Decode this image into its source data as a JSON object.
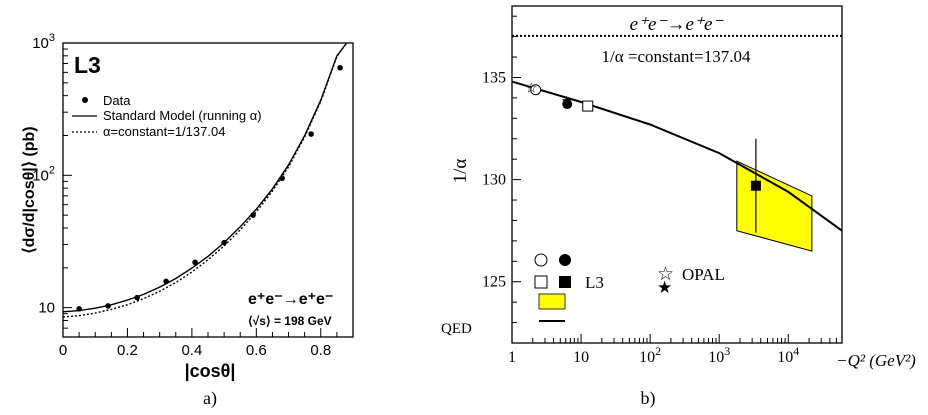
{
  "chart_data": [
    {
      "type": "scatter",
      "panel_label": "a)",
      "experiment_label": "L3",
      "ylabel": "⟨dσ/d|cosθ|⟩ (pb)",
      "xlabel": "|cosθ|",
      "xlim": [
        0,
        0.9
      ],
      "ylim": [
        6,
        1000
      ],
      "yscale": "log",
      "x_ticks": [
        "0",
        "0.2",
        "0.4",
        "0.6",
        "0.8"
      ],
      "y_tick_labels": [
        {
          "base": "10",
          "exp": ""
        },
        {
          "base": "10",
          "exp": "2"
        },
        {
          "base": "10",
          "exp": "3"
        }
      ],
      "legend": {
        "position": "top-left",
        "entries": [
          "Data",
          "Standard Model (running α)",
          "α=constant=1/137.04"
        ]
      },
      "process_label": "e⁺e⁻→e⁺e⁻",
      "energy_label": "⟨√s⟩ = 198 GeV",
      "series": [
        {
          "name": "Data",
          "x": [
            0.05,
            0.14,
            0.23,
            0.32,
            0.41,
            0.5,
            0.59,
            0.68,
            0.77,
            0.86
          ],
          "y": [
            9.8,
            10.3,
            11.9,
            15.8,
            22,
            31,
            50,
            95,
            205,
            650
          ]
        },
        {
          "name": "Standard Model (running α)",
          "x": [
            0,
            0.05,
            0.1,
            0.15,
            0.2,
            0.25,
            0.3,
            0.35,
            0.4,
            0.45,
            0.5,
            0.55,
            0.6,
            0.65,
            0.7,
            0.75,
            0.8,
            0.85,
            0.88
          ],
          "y": [
            9.3,
            9.5,
            9.9,
            10.5,
            11.4,
            12.6,
            14.3,
            16.6,
            19.9,
            24.4,
            31,
            40.8,
            55.5,
            79,
            120,
            200,
            370,
            800,
            1000
          ]
        },
        {
          "name": "α=constant=1/137.04",
          "x": [
            0,
            0.05,
            0.1,
            0.15,
            0.2,
            0.25,
            0.3,
            0.35,
            0.4,
            0.45,
            0.5,
            0.55,
            0.6,
            0.65,
            0.7,
            0.75,
            0.8,
            0.85,
            0.88
          ],
          "y": [
            8.5,
            8.7,
            9.1,
            9.7,
            10.5,
            11.7,
            13.3,
            15.5,
            18.6,
            23,
            29.3,
            38.7,
            53,
            76,
            116,
            195,
            362,
            790,
            1000
          ]
        }
      ]
    },
    {
      "type": "scatter",
      "panel_label": "b)",
      "ylabel": "1/α",
      "xlabel": "−Q² (GeV²)",
      "xscale": "log",
      "xlim": [
        1,
        60000
      ],
      "ylim": [
        122,
        138.5
      ],
      "x_tick_labels": [
        {
          "base": "1",
          "exp": ""
        },
        {
          "base": "10",
          "exp": ""
        },
        {
          "base": "10",
          "exp": "2"
        },
        {
          "base": "10",
          "exp": "3"
        },
        {
          "base": "10",
          "exp": "4"
        }
      ],
      "y_ticks": [
        "125",
        "130",
        "135"
      ],
      "title": "e⁺e⁻→e⁺e⁻",
      "constant_line": {
        "label": "1/α =constant=137.04",
        "value": 137.04
      },
      "legend": {
        "position": "bottom-left",
        "entries": [
          "L3",
          "OPAL",
          "QED"
        ]
      },
      "qed_curve": {
        "x": [
          1,
          10,
          100,
          1000,
          10000,
          60000
        ],
        "y": [
          134.8,
          133.8,
          132.7,
          131.3,
          129.4,
          127.5
        ]
      },
      "points": [
        {
          "experiment": "L3",
          "marker": "open-circle",
          "x": 2.2,
          "y": 134.4
        },
        {
          "experiment": "L3",
          "marker": "filled-circle",
          "x": 6.3,
          "y": 133.7
        },
        {
          "experiment": "L3",
          "marker": "open-square",
          "x": 12.5,
          "y": 133.6
        },
        {
          "experiment": "L3",
          "marker": "filled-square",
          "x": 3400,
          "y": 129.7,
          "yerr": 2.3
        },
        {
          "experiment": "OPAL",
          "marker": "open-star",
          "x": 1.9,
          "y": 134.5
        },
        {
          "experiment": "OPAL",
          "marker": "filled-star",
          "x": 6.2,
          "y": 133.9
        }
      ],
      "band": {
        "experiment": "L3",
        "x_min": 1800,
        "x_max": 22000,
        "y_top_left": 130.9,
        "y_bottom_left": 127.5,
        "y_top_right": 129.2,
        "y_bottom_right": 126.5
      }
    }
  ]
}
